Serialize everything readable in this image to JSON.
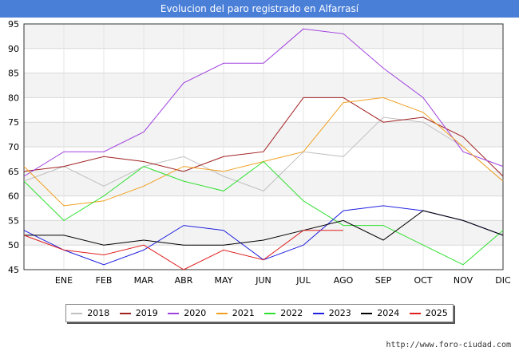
{
  "header": {
    "title": "Evolucion del paro registrado en Alfarrasí"
  },
  "source": "http://www.foro-ciudad.com",
  "chart_data": {
    "type": "line",
    "title": "Evolucion del paro registrado en Alfarrasí",
    "categories": [
      "",
      "ENE",
      "FEB",
      "MAR",
      "ABR",
      "MAY",
      "JUN",
      "JUL",
      "AGO",
      "SEP",
      "OCT",
      "NOV",
      "DIC"
    ],
    "ylim": [
      45,
      95
    ],
    "yticks": [
      45,
      50,
      55,
      60,
      65,
      70,
      75,
      80,
      85,
      90,
      95
    ],
    "grid": true,
    "legend_position": "bottom",
    "series": [
      {
        "name": "2018",
        "color": "#c0c0c0",
        "values": [
          63,
          66,
          62,
          66,
          68,
          64,
          61,
          69,
          68,
          76,
          75,
          70,
          63
        ]
      },
      {
        "name": "2019",
        "color": "#a02020",
        "values": [
          65,
          66,
          68,
          67,
          65,
          68,
          69,
          80,
          80,
          75,
          76,
          72,
          64
        ]
      },
      {
        "name": "2020",
        "color": "#a040e0",
        "values": [
          64,
          69,
          69,
          73,
          83,
          87,
          87,
          94,
          93,
          86,
          80,
          69,
          66
        ]
      },
      {
        "name": "2021",
        "color": "#f0a020",
        "values": [
          66,
          58,
          59,
          62,
          66,
          65,
          67,
          69,
          79,
          80,
          77,
          70,
          63
        ]
      },
      {
        "name": "2022",
        "color": "#30e030",
        "values": [
          63,
          55,
          60,
          66,
          63,
          61,
          67,
          59,
          54,
          54,
          50,
          46,
          53
        ]
      },
      {
        "name": "2023",
        "color": "#2020e0",
        "values": [
          53,
          49,
          46,
          49,
          54,
          53,
          47,
          50,
          57,
          58,
          57,
          55,
          52
        ]
      },
      {
        "name": "2024",
        "color": "#000000",
        "values": [
          52,
          52,
          50,
          51,
          50,
          50,
          51,
          53,
          55,
          51,
          57,
          55,
          52
        ]
      },
      {
        "name": "2025",
        "color": "#e02020",
        "values": [
          52,
          49,
          48,
          50,
          45,
          49,
          47,
          53,
          53,
          null,
          null,
          null,
          null
        ]
      }
    ]
  }
}
